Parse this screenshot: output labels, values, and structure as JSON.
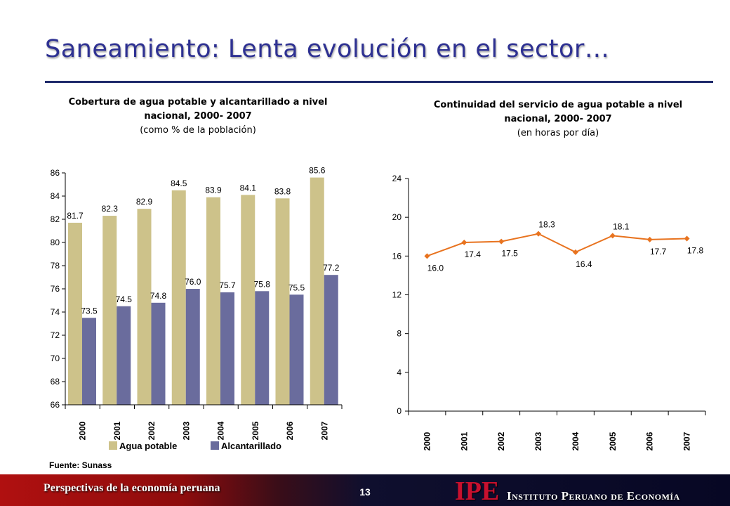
{
  "title": "Saneamiento: Lenta evolución en el sector…",
  "source": "Fuente: Sunass",
  "footer": {
    "left_text": "Perspectivas de la economía peruana",
    "page_number": "13",
    "logo_text": "IPE",
    "org_name": "Instituto Peruano de Economía"
  },
  "colors": {
    "title": "#2e3192",
    "agua": "#cdc28a",
    "alcantarillado": "#6a6c9d",
    "line": "#e8731f"
  },
  "chart_data": [
    {
      "type": "bar",
      "heading": "Cobertura de agua potable y alcantarillado a nivel nacional, 2000- 2007",
      "subheading": "(como % de la población)",
      "categories": [
        "2000",
        "2001",
        "2002",
        "2003",
        "2004",
        "2005",
        "2006",
        "2007"
      ],
      "series": [
        {
          "name": "Agua potable",
          "values": [
            81.7,
            82.3,
            82.9,
            84.5,
            83.9,
            84.1,
            83.8,
            85.6
          ]
        },
        {
          "name": "Alcantarillado",
          "values": [
            73.5,
            74.5,
            74.8,
            76.0,
            75.7,
            75.8,
            75.5,
            77.2
          ]
        }
      ],
      "ylim": [
        66,
        86
      ],
      "yticks": [
        66,
        68,
        70,
        72,
        74,
        76,
        78,
        80,
        82,
        84,
        86
      ],
      "legend": "bottom",
      "grid": false
    },
    {
      "type": "line",
      "heading": "Continuidad del servicio de agua potable a nivel nacional, 2000- 2007",
      "subheading": "(en horas por día)",
      "categories": [
        "2000",
        "2001",
        "2002",
        "2003",
        "2004",
        "2005",
        "2006",
        "2007"
      ],
      "series": [
        {
          "values": [
            16.0,
            17.4,
            17.5,
            18.3,
            16.4,
            18.1,
            17.7,
            17.8
          ]
        }
      ],
      "ylim": [
        0,
        24
      ],
      "yticks": [
        0,
        4,
        8,
        12,
        16,
        20,
        24
      ],
      "legend": "none",
      "grid": false
    }
  ]
}
